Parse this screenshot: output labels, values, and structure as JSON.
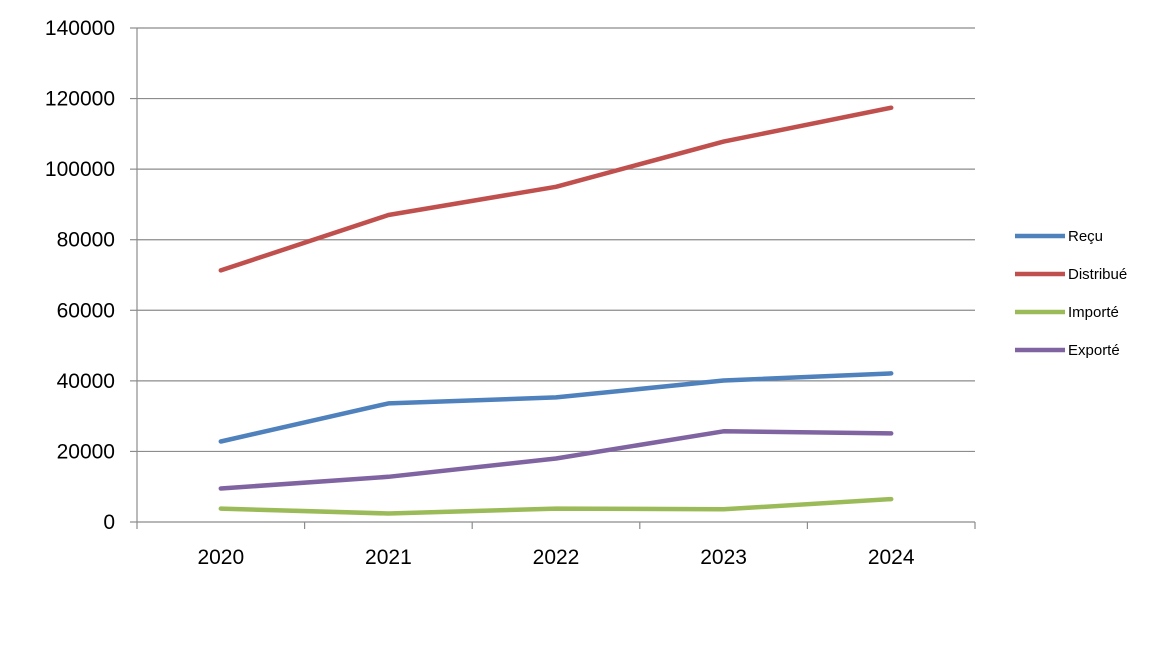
{
  "chart_data": {
    "type": "line",
    "title": "",
    "xlabel": "",
    "ylabel": "",
    "categories": [
      "2020",
      "2021",
      "2022",
      "2023",
      "2024"
    ],
    "ylim": [
      0,
      140000
    ],
    "yticks": [
      0,
      20000,
      40000,
      60000,
      80000,
      100000,
      120000,
      140000
    ],
    "ytick_labels": [
      "0",
      "20000",
      "40000",
      "60000",
      "80000",
      "100000",
      "120000",
      "140000"
    ],
    "grid": "horizontal",
    "legend_position": "right",
    "series": [
      {
        "name": "Reçu",
        "color": "#4f81bd",
        "values": [
          22800,
          33600,
          35300,
          40100,
          42100
        ]
      },
      {
        "name": "Distribué",
        "color": "#c0504d",
        "values": [
          71300,
          87000,
          95000,
          107800,
          117400
        ]
      },
      {
        "name": "Importé",
        "color": "#9bbb59",
        "values": [
          3800,
          2400,
          3800,
          3600,
          6500
        ]
      },
      {
        "name": "Exporté",
        "color": "#8064a2",
        "values": [
          9500,
          12800,
          18000,
          25700,
          25100
        ]
      }
    ]
  }
}
